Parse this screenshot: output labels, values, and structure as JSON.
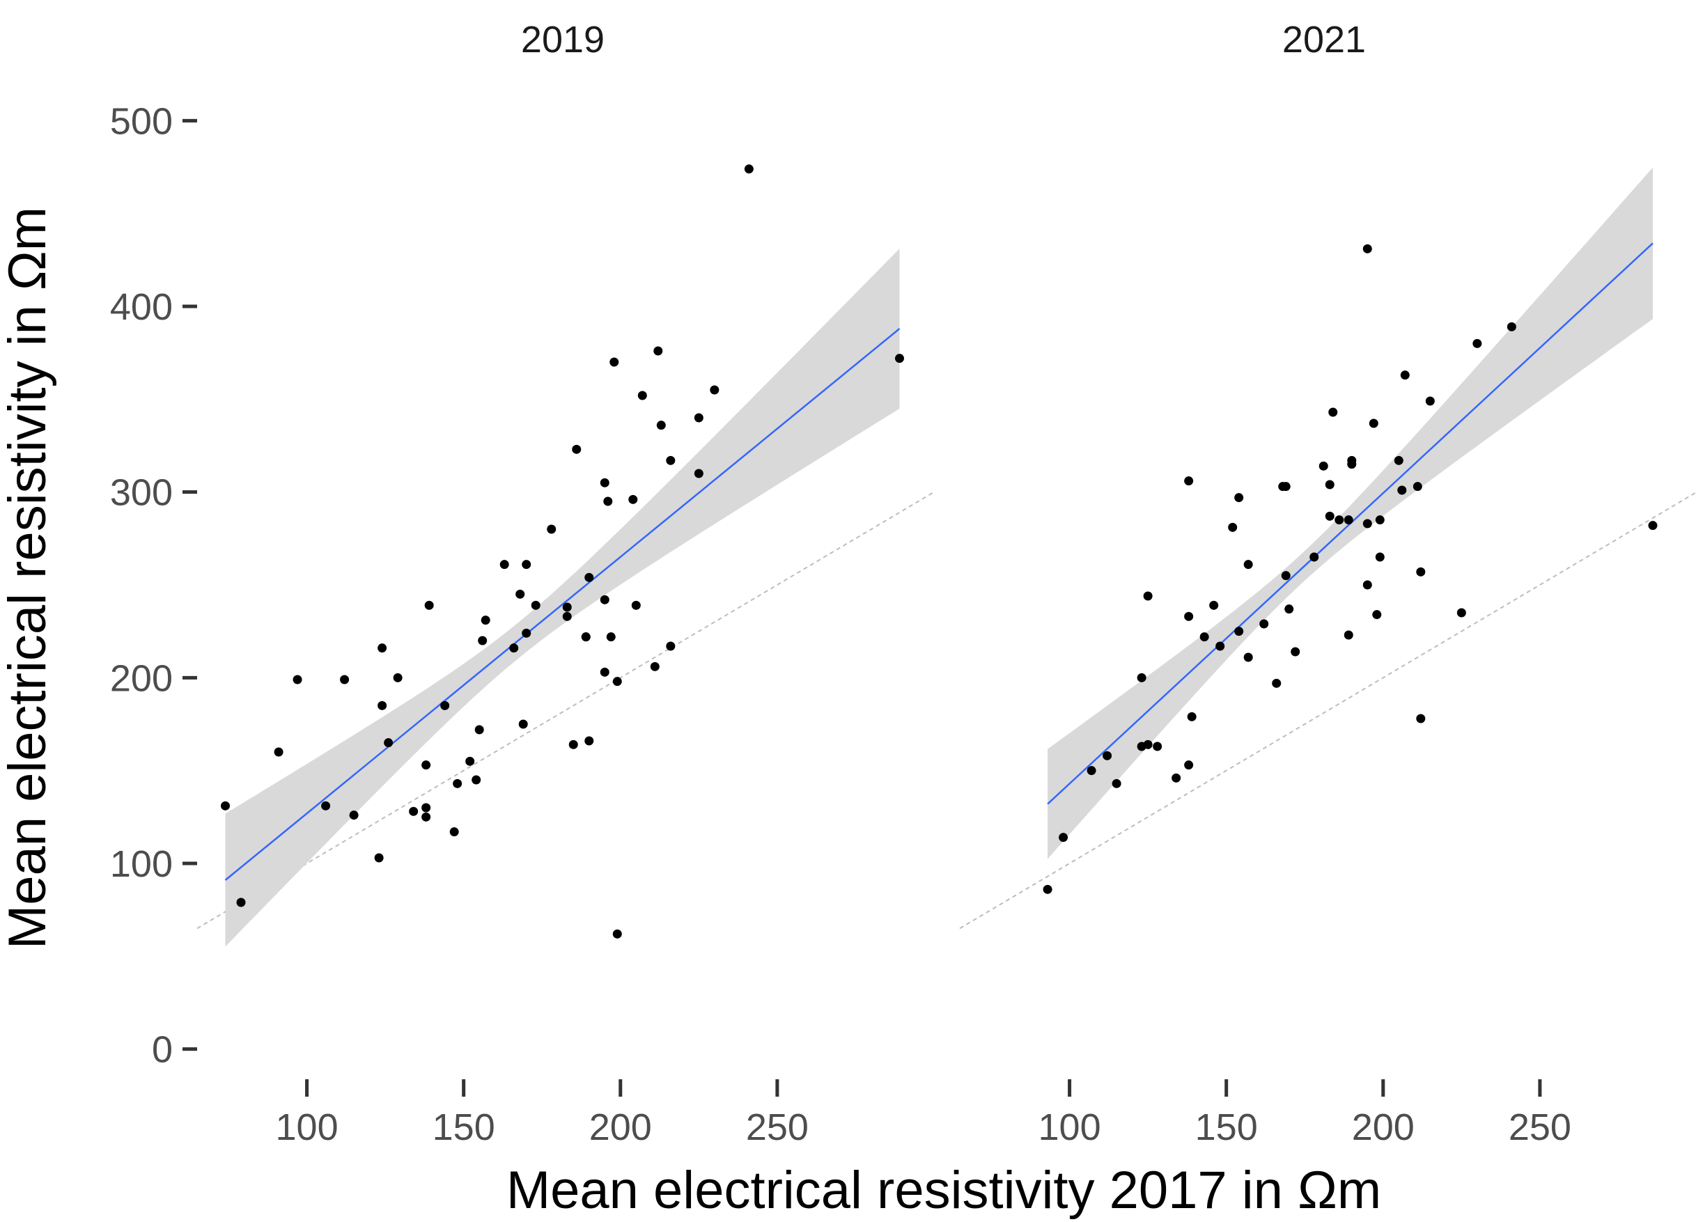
{
  "chart_data": {
    "type": "scatter",
    "xlabel": "Mean electrical resistivity 2017 in Ωm",
    "ylabel": "Mean electrical resistivity in Ωm",
    "ylim": [
      -20,
      520
    ],
    "yticks": [
      0,
      100,
      200,
      300,
      400,
      500
    ],
    "xticks": [
      100,
      150,
      200,
      250
    ],
    "reference_line": "y = x (dashed grey)",
    "colors": {
      "points": "#000000",
      "fit": "#3366ff",
      "ribbon": "#d9d9d9",
      "reference": "#bdbdbd"
    },
    "panels": [
      {
        "title": "2019",
        "xlim": [
          65,
          300
        ],
        "fit": {
          "x": [
            74,
            289
          ],
          "y": [
            91,
            388
          ],
          "ci_lower": [
            57,
            346
          ],
          "ci_upper": [
            126,
            430
          ],
          "ci_pinch_x": 167
        },
        "points": [
          [
            74,
            131
          ],
          [
            79,
            79
          ],
          [
            91,
            160
          ],
          [
            97,
            199
          ],
          [
            106,
            131
          ],
          [
            112,
            199
          ],
          [
            115,
            126
          ],
          [
            123,
            103
          ],
          [
            124,
            216
          ],
          [
            124,
            185
          ],
          [
            126,
            165
          ],
          [
            129,
            200
          ],
          [
            134,
            128
          ],
          [
            138,
            153
          ],
          [
            138,
            130
          ],
          [
            138,
            125
          ],
          [
            139,
            239
          ],
          [
            144,
            185
          ],
          [
            147,
            117
          ],
          [
            148,
            143
          ],
          [
            152,
            155
          ],
          [
            154,
            145
          ],
          [
            155,
            172
          ],
          [
            156,
            220
          ],
          [
            157,
            231
          ],
          [
            163,
            261
          ],
          [
            166,
            216
          ],
          [
            168,
            245
          ],
          [
            169,
            175
          ],
          [
            170,
            224
          ],
          [
            170,
            261
          ],
          [
            173,
            239
          ],
          [
            178,
            280
          ],
          [
            183,
            238
          ],
          [
            183,
            233
          ],
          [
            185,
            164
          ],
          [
            186,
            323
          ],
          [
            189,
            222
          ],
          [
            189,
            222
          ],
          [
            190,
            254
          ],
          [
            190,
            166
          ],
          [
            195,
            305
          ],
          [
            195,
            242
          ],
          [
            195,
            203
          ],
          [
            196,
            295
          ],
          [
            197,
            222
          ],
          [
            198,
            370
          ],
          [
            199,
            198
          ],
          [
            199,
            62
          ],
          [
            204,
            296
          ],
          [
            205,
            239
          ],
          [
            207,
            352
          ],
          [
            211,
            206
          ],
          [
            212,
            376
          ],
          [
            213,
            336
          ],
          [
            216,
            317
          ],
          [
            216,
            217
          ],
          [
            225,
            340
          ],
          [
            225,
            310
          ],
          [
            230,
            355
          ],
          [
            241,
            474
          ],
          [
            289,
            372
          ]
        ]
      },
      {
        "title": "2021",
        "xlim": [
          65,
          300
        ],
        "fit": {
          "x": [
            93,
            286
          ],
          "y": [
            132,
            434
          ],
          "ci_lower": [
            104,
            394
          ],
          "ci_upper": [
            161,
            474
          ],
          "ci_pinch_x": 174
        },
        "points": [
          [
            93,
            86
          ],
          [
            98,
            114
          ],
          [
            107,
            150
          ],
          [
            112,
            158
          ],
          [
            115,
            143
          ],
          [
            123,
            200
          ],
          [
            123,
            163
          ],
          [
            125,
            244
          ],
          [
            125,
            164
          ],
          [
            128,
            163
          ],
          [
            134,
            146
          ],
          [
            138,
            306
          ],
          [
            138,
            153
          ],
          [
            138,
            233
          ],
          [
            139,
            179
          ],
          [
            143,
            222
          ],
          [
            146,
            239
          ],
          [
            148,
            217
          ],
          [
            152,
            281
          ],
          [
            154,
            225
          ],
          [
            154,
            297
          ],
          [
            157,
            211
          ],
          [
            157,
            261
          ],
          [
            162,
            229
          ],
          [
            166,
            197
          ],
          [
            168,
            303
          ],
          [
            169,
            255
          ],
          [
            169,
            303
          ],
          [
            170,
            237
          ],
          [
            172,
            214
          ],
          [
            178,
            265
          ],
          [
            181,
            314
          ],
          [
            183,
            304
          ],
          [
            183,
            287
          ],
          [
            184,
            343
          ],
          [
            186,
            285
          ],
          [
            189,
            285
          ],
          [
            189,
            223
          ],
          [
            190,
            317
          ],
          [
            190,
            315
          ],
          [
            195,
            250
          ],
          [
            195,
            283
          ],
          [
            195,
            431
          ],
          [
            197,
            337
          ],
          [
            198,
            234
          ],
          [
            199,
            265
          ],
          [
            199,
            285
          ],
          [
            205,
            317
          ],
          [
            206,
            301
          ],
          [
            207,
            363
          ],
          [
            211,
            303
          ],
          [
            212,
            257
          ],
          [
            212,
            178
          ],
          [
            215,
            349
          ],
          [
            225,
            235
          ],
          [
            230,
            380
          ],
          [
            241,
            389
          ],
          [
            286,
            282
          ]
        ]
      }
    ]
  }
}
